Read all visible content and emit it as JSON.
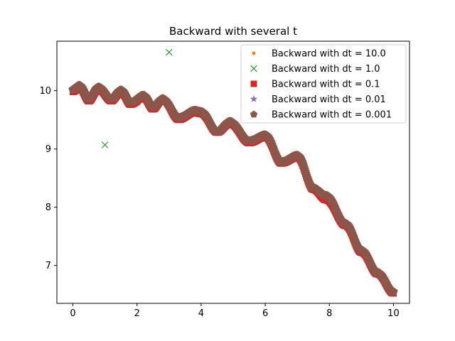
{
  "chart_data": {
    "type": "line",
    "title": "Backward with several t",
    "xlabel": "",
    "ylabel": "",
    "xlim": [
      -0.5,
      10.5
    ],
    "ylim": [
      6.35,
      10.85
    ],
    "xticks": [
      0,
      2,
      4,
      6,
      8,
      10
    ],
    "yticks": [
      7,
      8,
      9,
      10
    ],
    "grid": false,
    "legend_position": "top-right",
    "series": [
      {
        "name": "Backward with dt = 10.0",
        "marker": "circle",
        "color": "#ff7f0e",
        "x": [
          0,
          10
        ],
        "y": [
          10.0,
          6.52
        ]
      },
      {
        "name": "Backward with dt = 1.0",
        "marker": "x",
        "color": "#2ca02c",
        "x": [
          0,
          1,
          2,
          3
        ],
        "y": [
          10.0,
          9.07,
          9.8,
          10.66
        ]
      },
      {
        "name": "Backward with dt = 0.1",
        "marker": "square",
        "color": "#d62728",
        "curve": "dense",
        "x": [
          0,
          0.2,
          0.5,
          0.8,
          1.2,
          1.5,
          1.8,
          2.2,
          2.5,
          2.8,
          3.3,
          3.8,
          4.0,
          4.5,
          4.9,
          5.5,
          6.0,
          6.5,
          7.0,
          7.5,
          7.9,
          8.5,
          9.0,
          9.5,
          10.0
        ],
        "y": [
          9.98,
          10.05,
          9.82,
          10.02,
          9.82,
          9.97,
          9.76,
          9.88,
          9.68,
          9.84,
          9.5,
          9.62,
          9.6,
          9.28,
          9.43,
          9.1,
          9.2,
          8.75,
          8.85,
          8.3,
          8.12,
          7.68,
          7.22,
          6.85,
          6.52
        ]
      },
      {
        "name": "Backward with dt = 0.01",
        "marker": "star",
        "color": "#9467bd",
        "curve": "dense",
        "x": [],
        "y": []
      },
      {
        "name": "Backward with dt = 0.001",
        "marker": "pentagon",
        "color": "#8c564b",
        "curve": "dense",
        "x": [
          0,
          0.2,
          0.5,
          0.8,
          1.2,
          1.5,
          1.8,
          2.2,
          2.5,
          2.8,
          3.3,
          3.8,
          4.0,
          4.5,
          4.9,
          5.5,
          6.0,
          6.5,
          7.0,
          7.5,
          7.9,
          8.5,
          9.0,
          9.5,
          10.0
        ],
        "y": [
          10.02,
          10.09,
          9.86,
          10.06,
          9.86,
          10.01,
          9.8,
          9.92,
          9.72,
          9.86,
          9.54,
          9.66,
          9.64,
          9.3,
          9.47,
          9.14,
          9.24,
          8.78,
          8.89,
          8.33,
          8.2,
          7.72,
          7.26,
          6.88,
          6.55
        ]
      }
    ]
  }
}
